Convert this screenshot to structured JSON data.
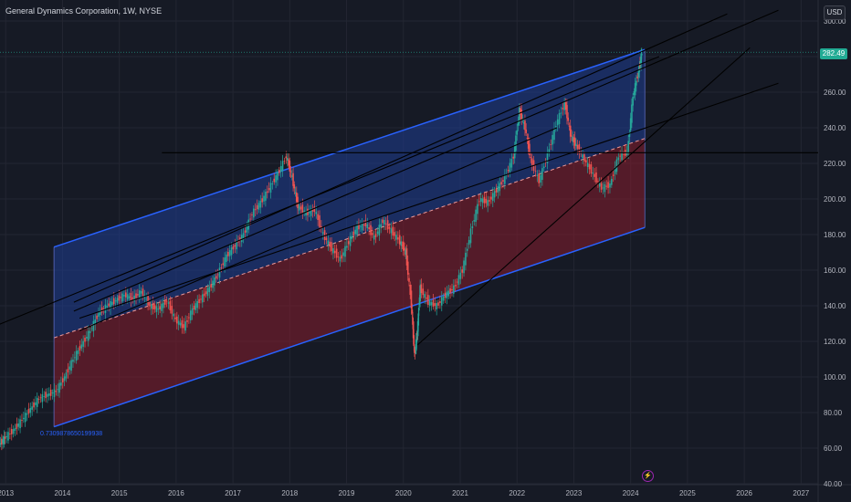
{
  "header": {
    "title": "General Dynamics Corporation, 1W, NYSE"
  },
  "axis": {
    "currency": "USD",
    "last_price": "282.49",
    "fib_label": "0.7309878650199938"
  },
  "colors": {
    "background": "#161a25",
    "grid": "#232632",
    "upper_fill": "#1e3a8a",
    "lower_fill": "#7f1d2d",
    "channel_line": "#2962ff",
    "candle_up": "#26a69a",
    "candle_down": "#ef5350",
    "trend_line": "#000000"
  },
  "chart_data": {
    "type": "line",
    "title": "General Dynamics Corporation, 1W, NYSE",
    "xlabel": "",
    "ylabel": "",
    "x_ticks": [
      "2013",
      "2014",
      "2015",
      "2016",
      "2017",
      "2018",
      "2019",
      "2020",
      "2021",
      "2022",
      "2023",
      "2024",
      "2025",
      "2026",
      "2027"
    ],
    "y_ticks": [
      40,
      60,
      80,
      100,
      120,
      140,
      160,
      180,
      200,
      220,
      240,
      260,
      280,
      300
    ],
    "ylim": [
      40,
      300
    ],
    "xlim": [
      2012.9,
      2027.3
    ],
    "grid": true,
    "series": [
      {
        "type": "candlestick",
        "x": [
          2012.9,
          2013.0,
          2013.15,
          2013.3,
          2013.45,
          2013.6,
          2013.75,
          2013.9,
          2014.05,
          2014.2,
          2014.35,
          2014.5,
          2014.65,
          2014.8,
          2014.95,
          2015.1,
          2015.25,
          2015.4,
          2015.55,
          2015.7,
          2015.85,
          2016.0,
          2016.15,
          2016.3,
          2016.45,
          2016.6,
          2016.75,
          2016.9,
          2017.05,
          2017.2,
          2017.35,
          2017.5,
          2017.65,
          2017.8,
          2017.95,
          2018.05,
          2018.15,
          2018.3,
          2018.45,
          2018.6,
          2018.75,
          2018.9,
          2019.05,
          2019.2,
          2019.35,
          2019.5,
          2019.65,
          2019.8,
          2019.95,
          2020.05,
          2020.15,
          2020.2,
          2020.25,
          2020.3,
          2020.45,
          2020.6,
          2020.75,
          2020.9,
          2021.05,
          2021.2,
          2021.35,
          2021.5,
          2021.65,
          2021.8,
          2021.95,
          2022.05,
          2022.15,
          2022.25,
          2022.4,
          2022.55,
          2022.7,
          2022.85,
          2022.95,
          2023.05,
          2023.2,
          2023.35,
          2023.5,
          2023.65,
          2023.8,
          2023.95,
          2024.05,
          2024.15,
          2024.2
        ],
        "values": [
          62,
          66,
          70,
          76,
          82,
          88,
          90,
          92,
          100,
          110,
          118,
          126,
          136,
          140,
          143,
          146,
          144,
          148,
          140,
          138,
          143,
          132,
          128,
          138,
          144,
          150,
          158,
          168,
          174,
          180,
          192,
          198,
          206,
          214,
          224,
          212,
          196,
          192,
          194,
          180,
          172,
          166,
          176,
          184,
          186,
          178,
          188,
          182,
          176,
          170,
          140,
          112,
          125,
          150,
          142,
          140,
          146,
          150,
          160,
          182,
          200,
          198,
          205,
          212,
          224,
          250,
          240,
          222,
          210,
          225,
          242,
          254,
          236,
          230,
          222,
          214,
          206,
          208,
          224,
          226,
          258,
          272,
          282
        ]
      }
    ],
    "channel": {
      "x_start": 2013.85,
      "x_end": 2024.25,
      "upper": [
        173,
        284
      ],
      "mid": [
        122,
        234
      ],
      "lower": [
        72,
        184
      ]
    },
    "trend_lines": [
      {
        "x": [
          2012.15,
          2024.5
        ],
        "y": [
          120,
          280
        ]
      },
      {
        "x": [
          2014.2,
          2025.7
        ],
        "y": [
          142,
          304
        ]
      },
      {
        "x": [
          2014.2,
          2026.6
        ],
        "y": [
          137,
          306
        ]
      },
      {
        "x": [
          2020.25,
          2026.1
        ],
        "y": [
          118,
          285
        ]
      },
      {
        "x": [
          2014.3,
          2026.6
        ],
        "y": [
          133,
          265
        ]
      },
      {
        "x": [
          2014.3,
          2022.7
        ],
        "y": [
          126,
          240
        ]
      },
      {
        "x": [
          2015.75,
          2027.3
        ],
        "y": [
          226,
          226
        ]
      }
    ]
  }
}
